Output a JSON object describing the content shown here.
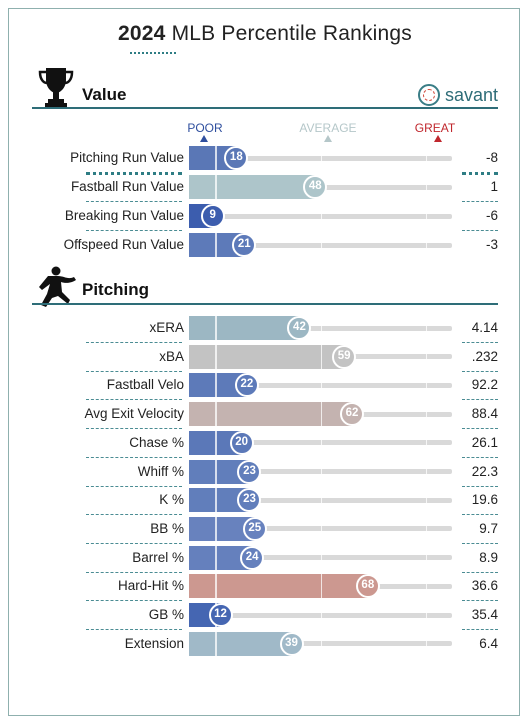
{
  "title": {
    "year": "2024",
    "rest": "MLB Percentile Rankings"
  },
  "brand": {
    "name": "savant",
    "logo_icon": "baseball-icon"
  },
  "scale": {
    "poor": "POOR",
    "average": "AVERAGE",
    "great": "GREAT",
    "colors": {
      "poor": "#2f4f9e",
      "average": "#b5c7c9",
      "great": "#c0272d"
    }
  },
  "sections": [
    {
      "title": "Value",
      "icon": "trophy-icon",
      "rows": [
        {
          "label": "Pitching Run Value",
          "percentile": 18,
          "value": "-8",
          "color": "#5a77b6"
        },
        {
          "label": "Fastball Run Value",
          "percentile": 48,
          "value": "1",
          "color": "#adc5ca"
        },
        {
          "label": "Breaking Run Value",
          "percentile": 9,
          "value": "-6",
          "color": "#3c5dae"
        },
        {
          "label": "Offspeed Run Value",
          "percentile": 21,
          "value": "-3",
          "color": "#5d7ab9"
        }
      ]
    },
    {
      "title": "Pitching",
      "icon": "pitcher-icon",
      "rows": [
        {
          "label": "xERA",
          "percentile": 42,
          "value": "4.14",
          "color": "#9cb7c3"
        },
        {
          "label": "xBA",
          "percentile": 59,
          "value": ".232",
          "color": "#c3c3c3"
        },
        {
          "label": "Fastball Velo",
          "percentile": 22,
          "value": "92.2",
          "color": "#5d7ab9"
        },
        {
          "label": "Avg Exit Velocity",
          "percentile": 62,
          "value": "88.4",
          "color": "#c4b3b0"
        },
        {
          "label": "Chase %",
          "percentile": 20,
          "value": "26.1",
          "color": "#5b78b8"
        },
        {
          "label": "Whiff %",
          "percentile": 23,
          "value": "22.3",
          "color": "#617ebb"
        },
        {
          "label": "K %",
          "percentile": 23,
          "value": "19.6",
          "color": "#617ebb"
        },
        {
          "label": "BB %",
          "percentile": 25,
          "value": "9.7",
          "color": "#6882be"
        },
        {
          "label": "Barrel %",
          "percentile": 24,
          "value": "8.9",
          "color": "#6580bd"
        },
        {
          "label": "Hard-Hit %",
          "percentile": 68,
          "value": "36.6",
          "color": "#cc9890"
        },
        {
          "label": "GB %",
          "percentile": 12,
          "value": "35.4",
          "color": "#4566b2"
        },
        {
          "label": "Extension",
          "percentile": 39,
          "value": "6.4",
          "color": "#a0b9c8"
        }
      ]
    }
  ],
  "chart_data": {
    "type": "bar",
    "title": "2024 MLB Percentile Rankings",
    "xlabel": "",
    "ylabel": "",
    "xlim": [
      0,
      100
    ],
    "categories": [
      "Pitching Run Value",
      "Fastball Run Value",
      "Breaking Run Value",
      "Offspeed Run Value",
      "xERA",
      "xBA",
      "Fastball Velo",
      "Avg Exit Velocity",
      "Chase %",
      "Whiff %",
      "K %",
      "BB %",
      "Barrel %",
      "Hard-Hit %",
      "GB %",
      "Extension"
    ],
    "series": [
      {
        "values": [
          18,
          48,
          9,
          21,
          42,
          59,
          22,
          62,
          20,
          23,
          23,
          25,
          24,
          68,
          12,
          39
        ]
      }
    ],
    "stat_values": [
      "-8",
      "1",
      "-6",
      "-3",
      "4.14",
      ".232",
      "92.2",
      "88.4",
      "26.1",
      "22.3",
      "19.6",
      "9.7",
      "8.9",
      "36.6",
      "35.4",
      "6.4"
    ],
    "grid": false,
    "legend": "none"
  }
}
